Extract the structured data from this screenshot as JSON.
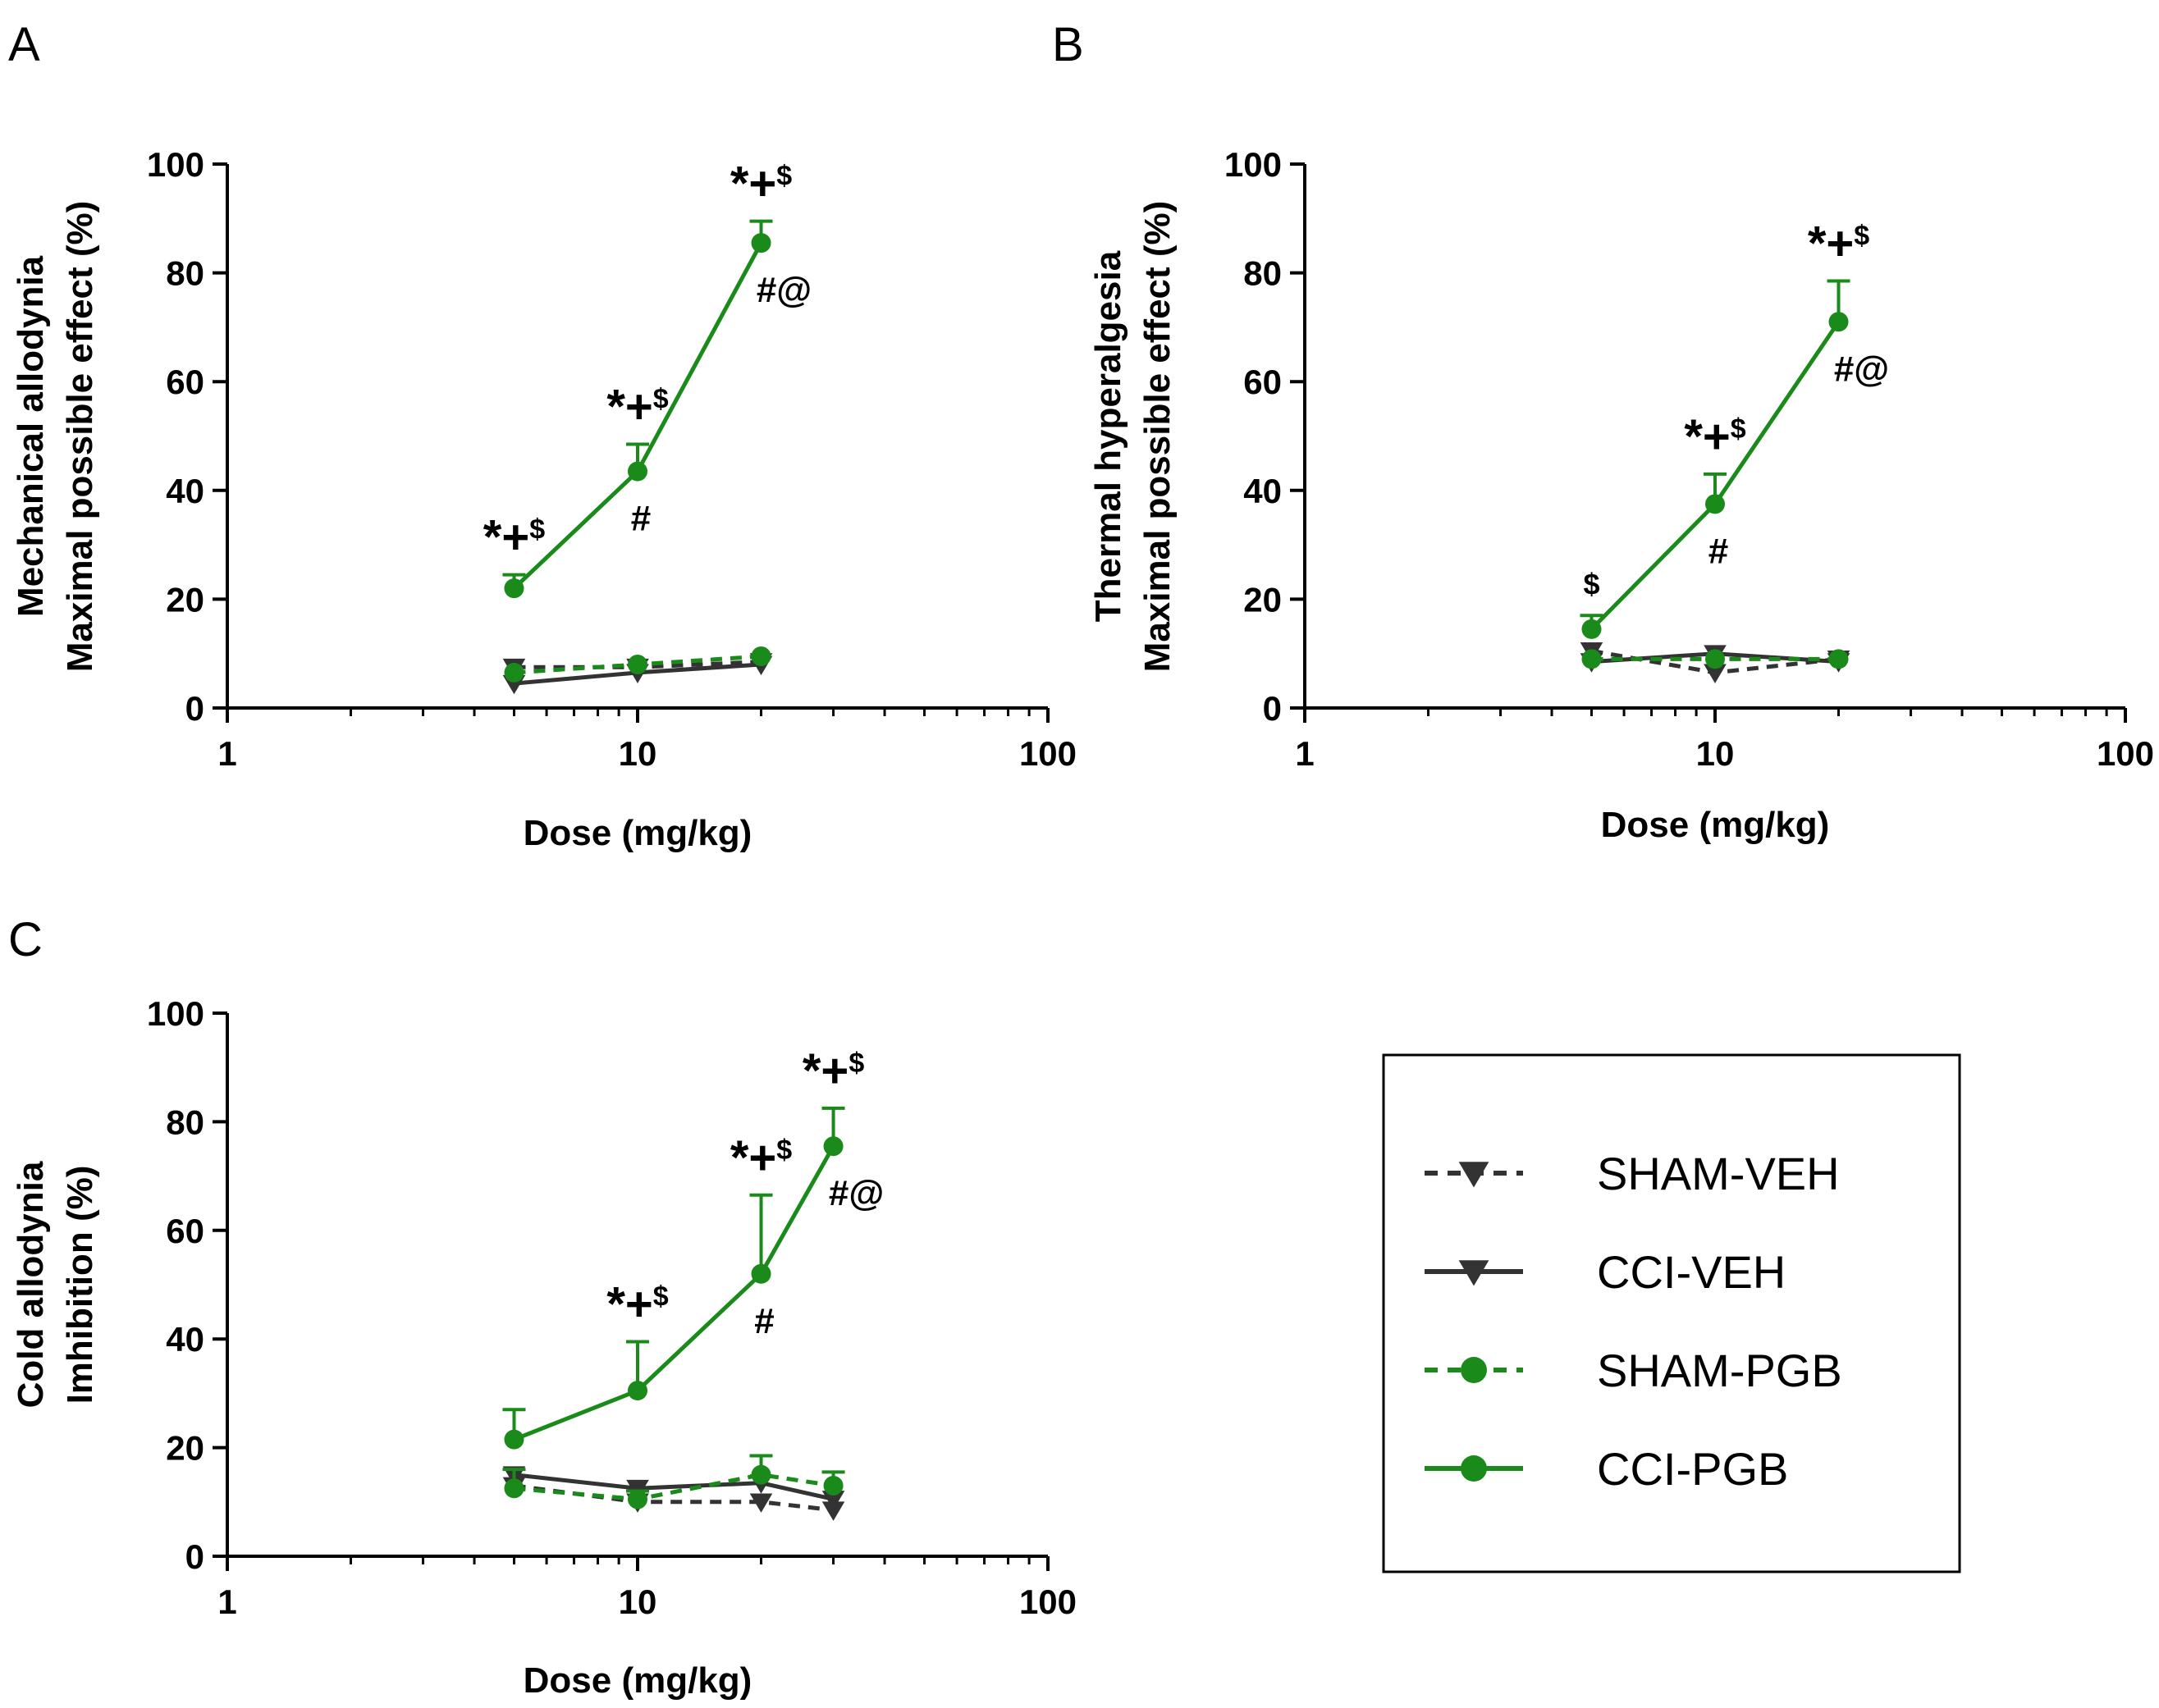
{
  "colors": {
    "green": "#1a8a1a",
    "dark": "#333333",
    "black": "#000000"
  },
  "legend": {
    "entries": [
      {
        "name": "SHAM-VEH",
        "color": "#333333",
        "dashed": true,
        "marker": "triangle-down"
      },
      {
        "name": "CCI-VEH",
        "color": "#333333",
        "dashed": false,
        "marker": "triangle-down"
      },
      {
        "name": "SHAM-PGB",
        "color": "#1a8a1a",
        "dashed": true,
        "marker": "circle"
      },
      {
        "name": "CCI-PGB",
        "color": "#1a8a1a",
        "dashed": false,
        "marker": "circle"
      }
    ]
  },
  "chart_data": [
    {
      "panel": "A",
      "type": "line",
      "xscale": "log",
      "xlim": [
        1,
        100
      ],
      "ylim": [
        0,
        100
      ],
      "xticks": [
        "1",
        "10",
        "100"
      ],
      "yticks": [
        "0",
        "20",
        "40",
        "60",
        "80",
        "100"
      ],
      "xlabel": "Dose (mg/kg)",
      "ylabel": [
        "Mechanical allodynia",
        "Maximal possible effect (%)"
      ],
      "series": [
        {
          "name": "SHAM-VEH",
          "x": [
            5,
            10,
            20
          ],
          "y": [
            7.5,
            7.5,
            8.5
          ],
          "err": [
            0,
            0,
            0
          ]
        },
        {
          "name": "CCI-VEH",
          "x": [
            5,
            10,
            20
          ],
          "y": [
            4.5,
            6.5,
            8
          ],
          "err": [
            0,
            0,
            0
          ]
        },
        {
          "name": "SHAM-PGB",
          "x": [
            5,
            10,
            20
          ],
          "y": [
            6.5,
            8,
            9.5
          ],
          "err": [
            0,
            0,
            0
          ]
        },
        {
          "name": "CCI-PGB",
          "x": [
            5,
            10,
            20
          ],
          "y": [
            22,
            43.5,
            85.5
          ],
          "err": [
            2.5,
            5,
            4
          ]
        }
      ],
      "annotations": [
        {
          "x": 5,
          "main": "*+",
          "sup": "$",
          "pos": "above",
          "refY": 24.5
        },
        {
          "x": 10,
          "main": "*+",
          "sup": "$",
          "pos": "above",
          "refY": 48.5
        },
        {
          "x": 20,
          "main": "*+",
          "sup": "$",
          "pos": "above",
          "refY": 89.5
        },
        {
          "x": 10,
          "main": "#",
          "sup": "",
          "pos": "below",
          "refY": 43.5
        },
        {
          "x": 20,
          "main": "#@",
          "sup": "",
          "pos": "below",
          "refY": 85.5
        }
      ]
    },
    {
      "panel": "B",
      "type": "line",
      "xscale": "log",
      "xlim": [
        1,
        100
      ],
      "ylim": [
        0,
        100
      ],
      "xticks": [
        "1",
        "10",
        "100"
      ],
      "yticks": [
        "0",
        "20",
        "40",
        "60",
        "80",
        "100"
      ],
      "xlabel": "Dose (mg/kg)",
      "ylabel": [
        "Thermal hyperalgesia",
        "Maximal possible effect (%)"
      ],
      "series": [
        {
          "name": "SHAM-VEH",
          "x": [
            5,
            10,
            20
          ],
          "y": [
            10.5,
            6.5,
            9
          ],
          "err": [
            0,
            0,
            0
          ]
        },
        {
          "name": "CCI-VEH",
          "x": [
            5,
            10,
            20
          ],
          "y": [
            8.5,
            10,
            8.5
          ],
          "err": [
            0,
            0,
            0
          ]
        },
        {
          "name": "SHAM-PGB",
          "x": [
            5,
            10,
            20
          ],
          "y": [
            9,
            9,
            9
          ],
          "err": [
            0,
            0,
            0
          ]
        },
        {
          "name": "CCI-PGB",
          "x": [
            5,
            10,
            20
          ],
          "y": [
            14.5,
            37.5,
            71
          ],
          "err": [
            2.5,
            5.5,
            7.5
          ]
        }
      ],
      "annotations": [
        {
          "x": 5,
          "main": "$",
          "sup": "",
          "pos": "above",
          "refY": 17
        },
        {
          "x": 10,
          "main": "*+",
          "sup": "$",
          "pos": "above",
          "refY": 43
        },
        {
          "x": 20,
          "main": "*+",
          "sup": "$",
          "pos": "above",
          "refY": 78.5
        },
        {
          "x": 10,
          "main": "#",
          "sup": "",
          "pos": "below",
          "refY": 37.5
        },
        {
          "x": 20,
          "main": "#@",
          "sup": "",
          "pos": "below",
          "refY": 71
        }
      ]
    },
    {
      "panel": "C",
      "type": "line",
      "xscale": "log",
      "xlim": [
        1,
        100
      ],
      "ylim": [
        0,
        100
      ],
      "xticks": [
        "1",
        "10",
        "100"
      ],
      "yticks": [
        "0",
        "20",
        "40",
        "60",
        "80",
        "100"
      ],
      "xlabel": "Dose (mg/kg)",
      "ylabel": [
        "Cold allodynia",
        "Imhibition (%)"
      ],
      "series": [
        {
          "name": "SHAM-VEH",
          "x": [
            5,
            10,
            20,
            30
          ],
          "y": [
            13,
            10,
            10,
            8.5
          ],
          "err": [
            0,
            0,
            0,
            0
          ]
        },
        {
          "name": "CCI-VEH",
          "x": [
            5,
            10,
            20,
            30
          ],
          "y": [
            15,
            12.5,
            13.5,
            10.5
          ],
          "err": [
            0,
            0,
            0,
            0
          ]
        },
        {
          "name": "SHAM-PGB",
          "x": [
            5,
            10,
            20,
            30
          ],
          "y": [
            12.5,
            10.5,
            15,
            13
          ],
          "err": [
            3.5,
            1.5,
            3.5,
            2.5
          ]
        },
        {
          "name": "CCI-PGB",
          "x": [
            5,
            10,
            20,
            30
          ],
          "y": [
            21.5,
            30.5,
            52,
            75.5
          ],
          "err": [
            5.5,
            9,
            14.5,
            7
          ]
        }
      ],
      "annotations": [
        {
          "x": 10,
          "main": "*+",
          "sup": "$",
          "pos": "above",
          "refY": 39.5
        },
        {
          "x": 20,
          "main": "*+",
          "sup": "$",
          "pos": "above",
          "refY": 66.5
        },
        {
          "x": 30,
          "main": "*+",
          "sup": "$",
          "pos": "above",
          "refY": 82.5
        },
        {
          "x": 20,
          "main": "#",
          "sup": "",
          "pos": "below",
          "refY": 52
        },
        {
          "x": 30,
          "main": "#@",
          "sup": "",
          "pos": "below",
          "refY": 75.5
        }
      ]
    }
  ]
}
